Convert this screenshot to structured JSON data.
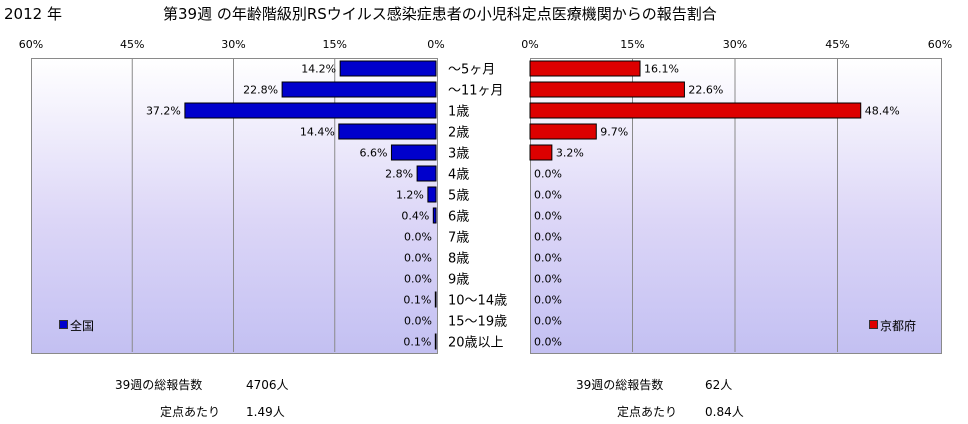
{
  "header": {
    "year": "2012 年",
    "title": "第39週 の年齢階級別RSウイルス感染症患者の小児科定点医療機関からの報告割合"
  },
  "chart_data": [
    {
      "type": "bar",
      "orientation": "horizontal",
      "direction": "right-to-left",
      "legend": "全国",
      "legend_position": "bottom-left",
      "color": "#0000cc",
      "xlim": [
        0,
        60
      ],
      "xticks": [
        "60%",
        "45%",
        "30%",
        "15%",
        "0%"
      ],
      "tick_values": [
        60,
        45,
        30,
        15,
        0
      ],
      "grid": true,
      "categories": [
        "～5ヶ月",
        "～11ヶ月",
        "1歳",
        "2歳",
        "3歳",
        "4歳",
        "5歳",
        "6歳",
        "7歳",
        "8歳",
        "9歳",
        "10～14歳",
        "15～19歳",
        "20歳以上"
      ],
      "values": [
        14.2,
        22.8,
        37.2,
        14.4,
        6.6,
        2.8,
        1.2,
        0.4,
        0.0,
        0.0,
        0.0,
        0.1,
        0.0,
        0.1
      ],
      "data_labels": [
        "14.2%",
        "22.8%",
        "37.2%",
        "14.4%",
        "6.6%",
        "2.8%",
        "1.2%",
        "0.4%",
        "0.0%",
        "0.0%",
        "0.0%",
        "0.1%",
        "0.0%",
        "0.1%"
      ]
    },
    {
      "type": "bar",
      "orientation": "horizontal",
      "direction": "left-to-right",
      "legend": "京都府",
      "legend_position": "bottom-right",
      "color": "#dd0000",
      "xlim": [
        0,
        60
      ],
      "xticks": [
        "0%",
        "15%",
        "30%",
        "45%",
        "60%"
      ],
      "tick_values": [
        0,
        15,
        30,
        45,
        60
      ],
      "grid": true,
      "categories": [
        "～5ヶ月",
        "～11ヶ月",
        "1歳",
        "2歳",
        "3歳",
        "4歳",
        "5歳",
        "6歳",
        "7歳",
        "8歳",
        "9歳",
        "10～14歳",
        "15～19歳",
        "20歳以上"
      ],
      "values": [
        16.1,
        22.6,
        48.4,
        9.7,
        3.2,
        0.0,
        0.0,
        0.0,
        0.0,
        0.0,
        0.0,
        0.0,
        0.0,
        0.0
      ],
      "data_labels": [
        "16.1%",
        "22.6%",
        "48.4%",
        "9.7%",
        "3.2%",
        "0.0%",
        "0.0%",
        "0.0%",
        "0.0%",
        "0.0%",
        "0.0%",
        "0.0%",
        "0.0%",
        "0.0%"
      ]
    }
  ],
  "stats": {
    "left": {
      "total_label": "39週の総報告数",
      "total_value": "4706人",
      "per_label": "定点あたり",
      "per_value": "1.49人"
    },
    "right": {
      "total_label": "39週の総報告数",
      "total_value": "62人",
      "per_label": "定点あたり",
      "per_value": "0.84人"
    }
  }
}
